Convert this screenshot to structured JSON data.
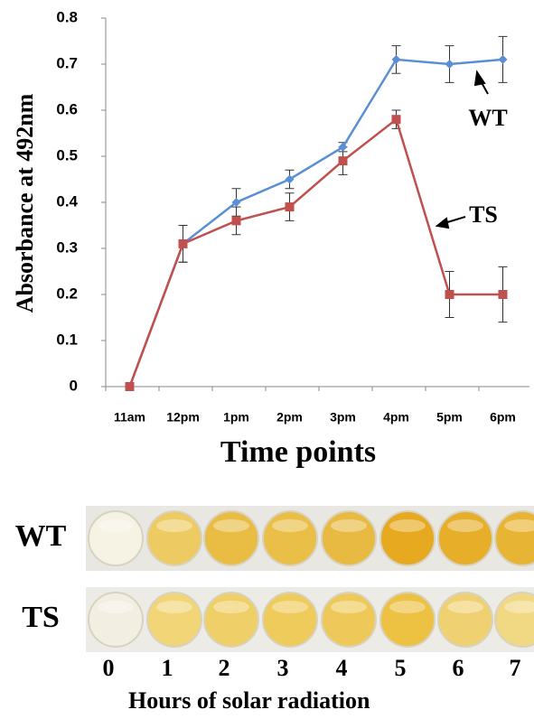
{
  "chart_data": {
    "type": "line",
    "y_label": "Absorbance at 492nm",
    "x_label": "Time points",
    "categories": [
      "11am",
      "12pm",
      "1pm",
      "2pm",
      "3pm",
      "4pm",
      "5pm",
      "6pm"
    ],
    "series": [
      {
        "name": "WT",
        "color": "#5b8fd4",
        "marker": "diamond",
        "values": [
          0,
          0.31,
          0.4,
          0.45,
          0.52,
          0.71,
          0.7,
          0.71
        ],
        "errors": [
          0,
          0.04,
          0.03,
          0.02,
          0.01,
          0.03,
          0.04,
          0.05
        ]
      },
      {
        "name": "TS",
        "color": "#c0504d",
        "marker": "square",
        "values": [
          0,
          0.31,
          0.36,
          0.39,
          0.49,
          0.58,
          0.2,
          0.2
        ],
        "errors": [
          0,
          0.04,
          0.03,
          0.03,
          0.03,
          0.02,
          0.05,
          0.06
        ]
      }
    ],
    "ylim": [
      0,
      0.8
    ],
    "yticks": [
      0,
      0.1,
      0.2,
      0.3,
      0.4,
      0.5,
      0.6,
      0.7,
      0.8
    ]
  },
  "photo": {
    "rows": [
      "WT",
      "TS"
    ],
    "columns": [
      "0",
      "1",
      "2",
      "3",
      "4",
      "5",
      "6",
      "7"
    ],
    "caption": "Hours of solar radiation"
  }
}
